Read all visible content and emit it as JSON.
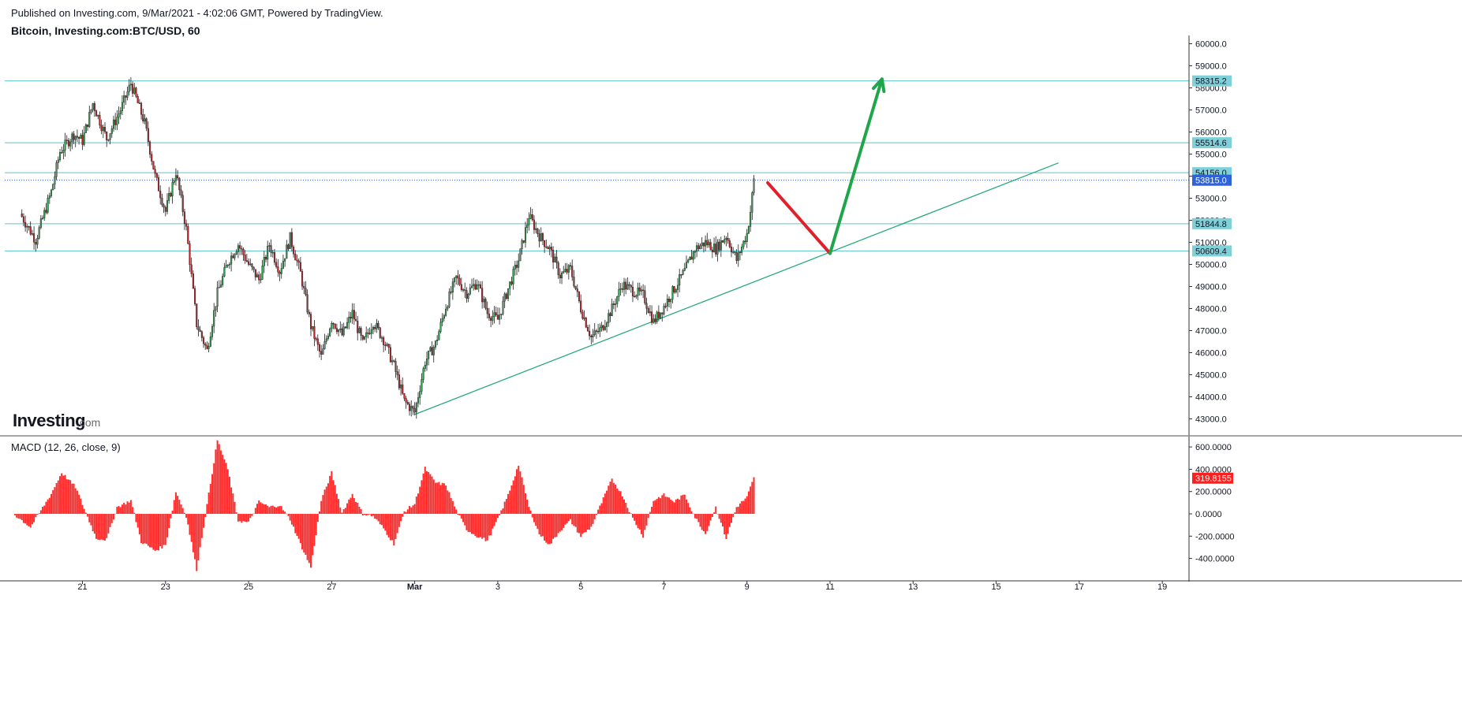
{
  "header": {
    "published": "Published on Investing.com, 9/Mar/2021 - 4:02:06 GMT, Powered by TradingView.",
    "symbol": "Bitcoin, Investing.com:BTC/USD, 60"
  },
  "logo": {
    "main": "Investing",
    "suffix": ".com"
  },
  "colors": {
    "level_line": "#5bc4cf",
    "level_tag_bg": "#7fd0d8",
    "current_tag_bg": "#2d62d9",
    "trendline": "#2aa87a",
    "arrow_down": "#e0202a",
    "arrow_up": "#1fa64a",
    "candle_up": "#2e9e4f",
    "candle_down": "#b8252c",
    "macd_hist": "#ff2b2b",
    "macd_tag_bg": "#ff1f1f"
  },
  "chart_data": [
    {
      "type": "candlestick",
      "title": "Bitcoin, Investing.com:BTC/USD, 60",
      "x_tick_labels": [
        "21",
        "23",
        "25",
        "27",
        "Mar",
        "3",
        "5",
        "7",
        "9",
        "11",
        "13",
        "15",
        "17",
        "19"
      ],
      "y_tick_labels": [
        "60000.0",
        "59000.0",
        "58000.0",
        "57000.0",
        "56000.0",
        "55000.0",
        "54000.0",
        "53000.0",
        "52000.0",
        "51000.0",
        "50000.0",
        "49000.0",
        "48000.0",
        "47000.0",
        "46000.0",
        "45000.0",
        "44000.0",
        "43000.0"
      ],
      "ylim": [
        42600,
        60200
      ],
      "price_anchors": [
        {
          "date": "Feb 19 12:00",
          "price": 52300
        },
        {
          "date": "Feb 19 21:00",
          "price": 51100
        },
        {
          "date": "Feb 20 06:00",
          "price": 53300
        },
        {
          "date": "Feb 20 11:00",
          "price": 55100
        },
        {
          "date": "Feb 20 19:00",
          "price": 55900
        },
        {
          "date": "Feb 21 00:00",
          "price": 55600
        },
        {
          "date": "Feb 21 06:00",
          "price": 57300
        },
        {
          "date": "Feb 21 14:00",
          "price": 55700
        },
        {
          "date": "Feb 21 22:00",
          "price": 57000
        },
        {
          "date": "Feb 22 04:00",
          "price": 58200
        },
        {
          "date": "Feb 22 12:00",
          "price": 56400
        },
        {
          "date": "Feb 22 18:00",
          "price": 54000
        },
        {
          "date": "Feb 23 00:00",
          "price": 52400
        },
        {
          "date": "Feb 23 06:00",
          "price": 54200
        },
        {
          "date": "Feb 23 12:00",
          "price": 51600
        },
        {
          "date": "Feb 23 18:00",
          "price": 47300
        },
        {
          "date": "Feb 24 00:00",
          "price": 46100
        },
        {
          "date": "Feb 24 06:00",
          "price": 48700
        },
        {
          "date": "Feb 24 12:00",
          "price": 50100
        },
        {
          "date": "Feb 24 18:00",
          "price": 50900
        },
        {
          "date": "Feb 25 00:00",
          "price": 50000
        },
        {
          "date": "Feb 25 06:00",
          "price": 49300
        },
        {
          "date": "Feb 25 12:00",
          "price": 50900
        },
        {
          "date": "Feb 25 18:00",
          "price": 49700
        },
        {
          "date": "Feb 26 00:00",
          "price": 51200
        },
        {
          "date": "Feb 26 06:00",
          "price": 49600
        },
        {
          "date": "Feb 26 12:00",
          "price": 47200
        },
        {
          "date": "Feb 26 18:00",
          "price": 45800
        },
        {
          "date": "Feb 27 00:00",
          "price": 47500
        },
        {
          "date": "Feb 27 06:00",
          "price": 46800
        },
        {
          "date": "Feb 27 12:00",
          "price": 47800
        },
        {
          "date": "Feb 27 18:00",
          "price": 46400
        },
        {
          "date": "Feb 28 00:00",
          "price": 47400
        },
        {
          "date": "Feb 28 06:00",
          "price": 46600
        },
        {
          "date": "Feb 28 12:00",
          "price": 45400
        },
        {
          "date": "Feb 28 18:00",
          "price": 43800
        },
        {
          "date": "Mar 1 00:00",
          "price": 43300
        },
        {
          "date": "Mar 1 06:00",
          "price": 45600
        },
        {
          "date": "Mar 1 12:00",
          "price": 46400
        },
        {
          "date": "Mar 1 18:00",
          "price": 48100
        },
        {
          "date": "Mar 2 00:00",
          "price": 49400
        },
        {
          "date": "Mar 2 06:00",
          "price": 48700
        },
        {
          "date": "Mar 2 12:00",
          "price": 49200
        },
        {
          "date": "Mar 2 18:00",
          "price": 47800
        },
        {
          "date": "Mar 3 00:00",
          "price": 47500
        },
        {
          "date": "Mar 3 06:00",
          "price": 48900
        },
        {
          "date": "Mar 3 12:00",
          "price": 50200
        },
        {
          "date": "Mar 3 18:00",
          "price": 52200
        },
        {
          "date": "Mar 4 00:00",
          "price": 51300
        },
        {
          "date": "Mar 4 06:00",
          "price": 50700
        },
        {
          "date": "Mar 4 12:00",
          "price": 49500
        },
        {
          "date": "Mar 4 18:00",
          "price": 49800
        },
        {
          "date": "Mar 5 00:00",
          "price": 48000
        },
        {
          "date": "Mar 5 06:00",
          "price": 46700
        },
        {
          "date": "Mar 5 12:00",
          "price": 47100
        },
        {
          "date": "Mar 5 18:00",
          "price": 48000
        },
        {
          "date": "Mar 6 00:00",
          "price": 49100
        },
        {
          "date": "Mar 6 06:00",
          "price": 48800
        },
        {
          "date": "Mar 6 12:00",
          "price": 48600
        },
        {
          "date": "Mar 6 18:00",
          "price": 47400
        },
        {
          "date": "Mar 7 00:00",
          "price": 48100
        },
        {
          "date": "Mar 7 06:00",
          "price": 48900
        },
        {
          "date": "Mar 7 12:00",
          "price": 49700
        },
        {
          "date": "Mar 7 18:00",
          "price": 50700
        },
        {
          "date": "Mar 8 00:00",
          "price": 51000
        },
        {
          "date": "Mar 8 06:00",
          "price": 50700
        },
        {
          "date": "Mar 8 12:00",
          "price": 51300
        },
        {
          "date": "Mar 8 18:00",
          "price": 50200
        },
        {
          "date": "Mar 9 00:00",
          "price": 51400
        },
        {
          "date": "Mar 9 02:00",
          "price": 52400
        },
        {
          "date": "Mar 9 04:00",
          "price": 53815
        }
      ],
      "horizontal_levels": [
        {
          "label": "58315.2",
          "price": 58315.2
        },
        {
          "label": "55514.6",
          "price": 55514.6
        },
        {
          "label": "54156.0",
          "price": 54156.0
        },
        {
          "label": "51844.8",
          "price": 51844.8
        },
        {
          "label": "50609.4",
          "price": 50609.4
        }
      ],
      "current_price": {
        "label": "53815.0",
        "price": 53815.0
      },
      "trendline": {
        "from": {
          "date": "Mar 1 00:00",
          "price": 43200
        },
        "to": {
          "date": "Mar 16 12:00",
          "price": 54600
        }
      },
      "projection": [
        {
          "date": "Mar 9 12:00",
          "price": 53700
        },
        {
          "date": "Mar 11 00:00",
          "price": 50500
        },
        {
          "date": "Mar 12 06:00",
          "price": 58400
        }
      ]
    },
    {
      "type": "histogram",
      "title": "MACD (12, 26, close, 9)",
      "y_tick_labels": [
        "600.0000",
        "400.0000",
        "200.0000",
        "0.0000",
        "-200.0000",
        "-400.0000"
      ],
      "ylim": [
        -520,
        650
      ],
      "current_value": {
        "label": "319.8155",
        "value": 319.8155
      },
      "histogram_anchors": [
        {
          "date": "Feb 19 09:00",
          "value": -10
        },
        {
          "date": "Feb 19 18:00",
          "value": -120
        },
        {
          "date": "Feb 20 06:00",
          "value": 180
        },
        {
          "date": "Feb 20 12:00",
          "value": 370
        },
        {
          "date": "Feb 20 20:00",
          "value": 240
        },
        {
          "date": "Feb 21 02:00",
          "value": 10
        },
        {
          "date": "Feb 21 08:00",
          "value": -220
        },
        {
          "date": "Feb 21 14:00",
          "value": -230
        },
        {
          "date": "Feb 21 20:00",
          "value": 60
        },
        {
          "date": "Feb 22 04:00",
          "value": 120
        },
        {
          "date": "Feb 22 10:00",
          "value": -250
        },
        {
          "date": "Feb 22 18:00",
          "value": -330
        },
        {
          "date": "Feb 23 00:00",
          "value": -280
        },
        {
          "date": "Feb 23 06:00",
          "value": 200
        },
        {
          "date": "Feb 23 12:00",
          "value": -20
        },
        {
          "date": "Feb 23 18:00",
          "value": -500
        },
        {
          "date": "Feb 24 00:00",
          "value": 80
        },
        {
          "date": "Feb 24 06:00",
          "value": 660
        },
        {
          "date": "Feb 24 12:00",
          "value": 400
        },
        {
          "date": "Feb 24 18:00",
          "value": -60
        },
        {
          "date": "Feb 25 00:00",
          "value": -80
        },
        {
          "date": "Feb 25 06:00",
          "value": 110
        },
        {
          "date": "Feb 25 12:00",
          "value": 60
        },
        {
          "date": "Feb 25 18:00",
          "value": 80
        },
        {
          "date": "Feb 26 00:00",
          "value": -50
        },
        {
          "date": "Feb 26 06:00",
          "value": -270
        },
        {
          "date": "Feb 26 12:00",
          "value": -480
        },
        {
          "date": "Feb 26 18:00",
          "value": 120
        },
        {
          "date": "Feb 27 00:00",
          "value": 370
        },
        {
          "date": "Feb 27 06:00",
          "value": 10
        },
        {
          "date": "Feb 27 12:00",
          "value": 180
        },
        {
          "date": "Feb 27 18:00",
          "value": 0
        },
        {
          "date": "Feb 28 00:00",
          "value": -20
        },
        {
          "date": "Feb 28 06:00",
          "value": -130
        },
        {
          "date": "Feb 28 12:00",
          "value": -270
        },
        {
          "date": "Feb 28 18:00",
          "value": 20
        },
        {
          "date": "Mar 1 00:00",
          "value": 90
        },
        {
          "date": "Mar 1 06:00",
          "value": 410
        },
        {
          "date": "Mar 1 12:00",
          "value": 280
        },
        {
          "date": "Mar 1 18:00",
          "value": 260
        },
        {
          "date": "Mar 2 00:00",
          "value": 30
        },
        {
          "date": "Mar 2 06:00",
          "value": -140
        },
        {
          "date": "Mar 2 12:00",
          "value": -200
        },
        {
          "date": "Mar 2 18:00",
          "value": -240
        },
        {
          "date": "Mar 3 00:00",
          "value": -50
        },
        {
          "date": "Mar 3 06:00",
          "value": 170
        },
        {
          "date": "Mar 3 12:00",
          "value": 440
        },
        {
          "date": "Mar 3 18:00",
          "value": 60
        },
        {
          "date": "Mar 4 00:00",
          "value": -180
        },
        {
          "date": "Mar 4 06:00",
          "value": -280
        },
        {
          "date": "Mar 4 12:00",
          "value": -150
        },
        {
          "date": "Mar 4 18:00",
          "value": -60
        },
        {
          "date": "Mar 5 00:00",
          "value": -200
        },
        {
          "date": "Mar 5 06:00",
          "value": -120
        },
        {
          "date": "Mar 5 12:00",
          "value": 100
        },
        {
          "date": "Mar 5 18:00",
          "value": 310
        },
        {
          "date": "Mar 6 00:00",
          "value": 170
        },
        {
          "date": "Mar 6 06:00",
          "value": -40
        },
        {
          "date": "Mar 6 12:00",
          "value": -200
        },
        {
          "date": "Mar 6 18:00",
          "value": 120
        },
        {
          "date": "Mar 7 00:00",
          "value": 170
        },
        {
          "date": "Mar 7 06:00",
          "value": 110
        },
        {
          "date": "Mar 7 12:00",
          "value": 170
        },
        {
          "date": "Mar 7 18:00",
          "value": -30
        },
        {
          "date": "Mar 8 00:00",
          "value": -180
        },
        {
          "date": "Mar 8 06:00",
          "value": 60
        },
        {
          "date": "Mar 8 12:00",
          "value": -220
        },
        {
          "date": "Mar 8 18:00",
          "value": 60
        },
        {
          "date": "Mar 9 00:00",
          "value": 150
        },
        {
          "date": "Mar 9 04:00",
          "value": 320
        }
      ]
    }
  ]
}
